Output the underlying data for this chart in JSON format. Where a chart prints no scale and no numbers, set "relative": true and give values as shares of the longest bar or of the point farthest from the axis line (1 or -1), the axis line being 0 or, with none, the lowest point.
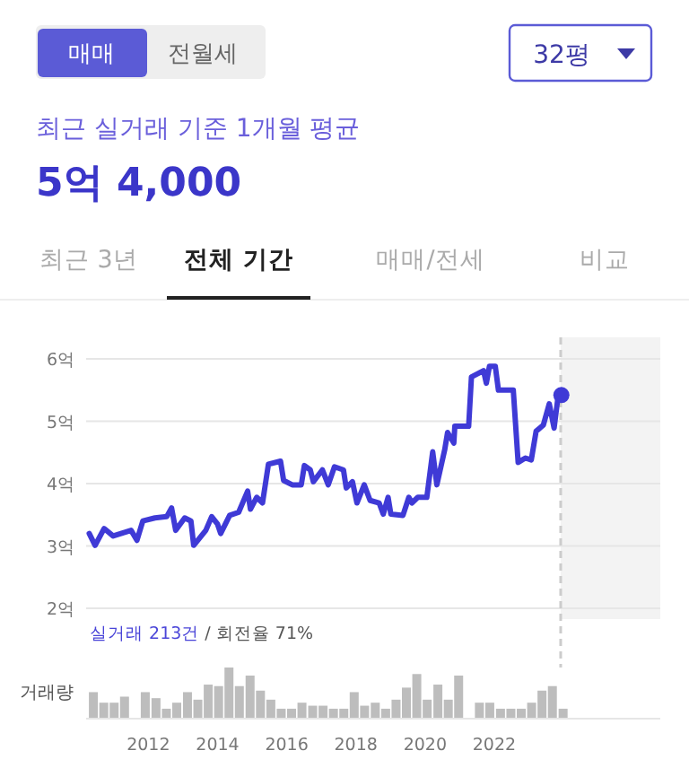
{
  "chart_data": [
    {
      "type": "other",
      "title": "5억 4,000",
      "subtitle": "최근 실거래 기준 1개월 평균",
      "annotations": [
        "매매",
        "전월세",
        "32평",
        "최근 3년",
        "전체 기간",
        "매매/전세",
        "비교"
      ]
    },
    {
      "type": "line",
      "xlim": [
        2010.2,
        2026.8
      ],
      "ylim": [
        2,
        6
      ],
      "yticks": [
        {
          "value": 2,
          "label": "2억"
        },
        {
          "value": 3,
          "label": "3억"
        },
        {
          "value": 4,
          "label": "4억"
        },
        {
          "value": 5,
          "label": "5억"
        },
        {
          "value": 6,
          "label": "6억"
        }
      ],
      "grid": "y",
      "tick_labels": "y",
      "line_style": "solid",
      "series": [
        {
          "color": "#3f3ad6",
          "x": [
            2010.29,
            2010.46,
            2010.72,
            2010.98,
            2011.5,
            2011.67,
            2011.84,
            2012.19,
            2012.53,
            2012.67,
            2012.79,
            2013.05,
            2013.23,
            2013.31,
            2013.66,
            2013.83,
            2014.0,
            2014.09,
            2014.35,
            2014.61,
            2014.87,
            2014.95,
            2015.13,
            2015.3,
            2015.47,
            2015.82,
            2015.91,
            2016.16,
            2016.42,
            2016.51,
            2016.68,
            2016.77,
            2017.03,
            2017.2,
            2017.38,
            2017.64,
            2017.72,
            2017.9,
            2018.03,
            2018.24,
            2018.41,
            2018.67,
            2018.79,
            2018.93,
            2019.01,
            2019.36,
            2019.53,
            2019.62,
            2019.79,
            2020.05,
            2020.22,
            2020.34,
            2020.57,
            2020.65,
            2020.83,
            2020.86,
            2021.26,
            2021.34,
            2021.69,
            2021.77,
            2021.86,
            2022.03,
            2022.12,
            2022.55,
            2022.69,
            2022.9,
            2023.07,
            2023.21,
            2023.42,
            2023.59,
            2023.73,
            2023.85,
            2023.94
          ],
          "values": [
            3.2,
            3.01,
            3.28,
            3.16,
            3.25,
            3.09,
            3.4,
            3.45,
            3.47,
            3.61,
            3.25,
            3.45,
            3.4,
            3.01,
            3.25,
            3.47,
            3.35,
            3.2,
            3.49,
            3.54,
            3.88,
            3.59,
            3.78,
            3.69,
            4.31,
            4.36,
            4.05,
            3.98,
            3.98,
            4.29,
            4.22,
            4.03,
            4.22,
            3.98,
            4.27,
            4.22,
            3.93,
            4.03,
            3.69,
            3.98,
            3.73,
            3.69,
            3.51,
            3.78,
            3.51,
            3.49,
            3.78,
            3.69,
            3.78,
            3.78,
            4.51,
            3.98,
            4.55,
            4.82,
            4.65,
            4.92,
            4.92,
            5.71,
            5.81,
            5.61,
            5.88,
            5.88,
            5.5,
            5.5,
            4.34,
            4.41,
            4.38,
            4.84,
            4.94,
            5.28,
            4.89,
            5.42,
            5.42
          ]
        },
        {
          "type": "scatter",
          "marker": "circle",
          "color": "#3f3ad6",
          "x": [
            2023.94
          ],
          "values": [
            5.42
          ]
        }
      ],
      "bands": [
        {
          "axis": "x",
          "from": 2023.92,
          "to": 2026.8,
          "color": "#f3f3f3"
        }
      ],
      "ref_lines": [
        {
          "axis": "x",
          "value": 2023.92,
          "color": "#cccccc",
          "line_style": "dashed"
        }
      ],
      "annotations": [
        "실거래 213건",
        "/ 회전율 71%"
      ]
    },
    {
      "type": "bar",
      "relative": true,
      "ylabel": "거래량",
      "color": "#bdbdbd",
      "xlim": [
        2010.2,
        2026.8
      ],
      "xticks": [
        2012,
        2014,
        2016,
        2018,
        2020,
        2022
      ],
      "tick_labels": "x",
      "x": [
        2010.41,
        2010.71,
        2011.01,
        2011.31,
        2011.61,
        2011.91,
        2012.22,
        2012.52,
        2012.82,
        2013.13,
        2013.43,
        2013.73,
        2014.03,
        2014.33,
        2014.63,
        2014.94,
        2015.24,
        2015.54,
        2015.84,
        2016.14,
        2016.44,
        2016.75,
        2017.05,
        2017.35,
        2017.65,
        2017.95,
        2018.25,
        2018.56,
        2018.86,
        2019.16,
        2019.46,
        2019.76,
        2020.06,
        2020.37,
        2020.67,
        2020.97,
        2021.27,
        2021.57,
        2021.87,
        2022.18,
        2022.48,
        2022.78,
        2023.08,
        2023.38,
        2023.68,
        2023.99
      ],
      "values": [
        0.51,
        0.3,
        0.3,
        0.42,
        0,
        0.51,
        0.39,
        0.18,
        0.3,
        0.51,
        0.36,
        0.66,
        0.63,
        1,
        0.63,
        0.84,
        0.54,
        0.36,
        0.18,
        0.18,
        0.3,
        0.24,
        0.24,
        0.18,
        0.18,
        0.51,
        0.24,
        0.3,
        0.18,
        0.36,
        0.6,
        0.87,
        0.36,
        0.66,
        0.36,
        0.84,
        0,
        0.3,
        0.3,
        0.18,
        0.18,
        0.18,
        0.3,
        0.54,
        0.63,
        0.18
      ]
    }
  ]
}
